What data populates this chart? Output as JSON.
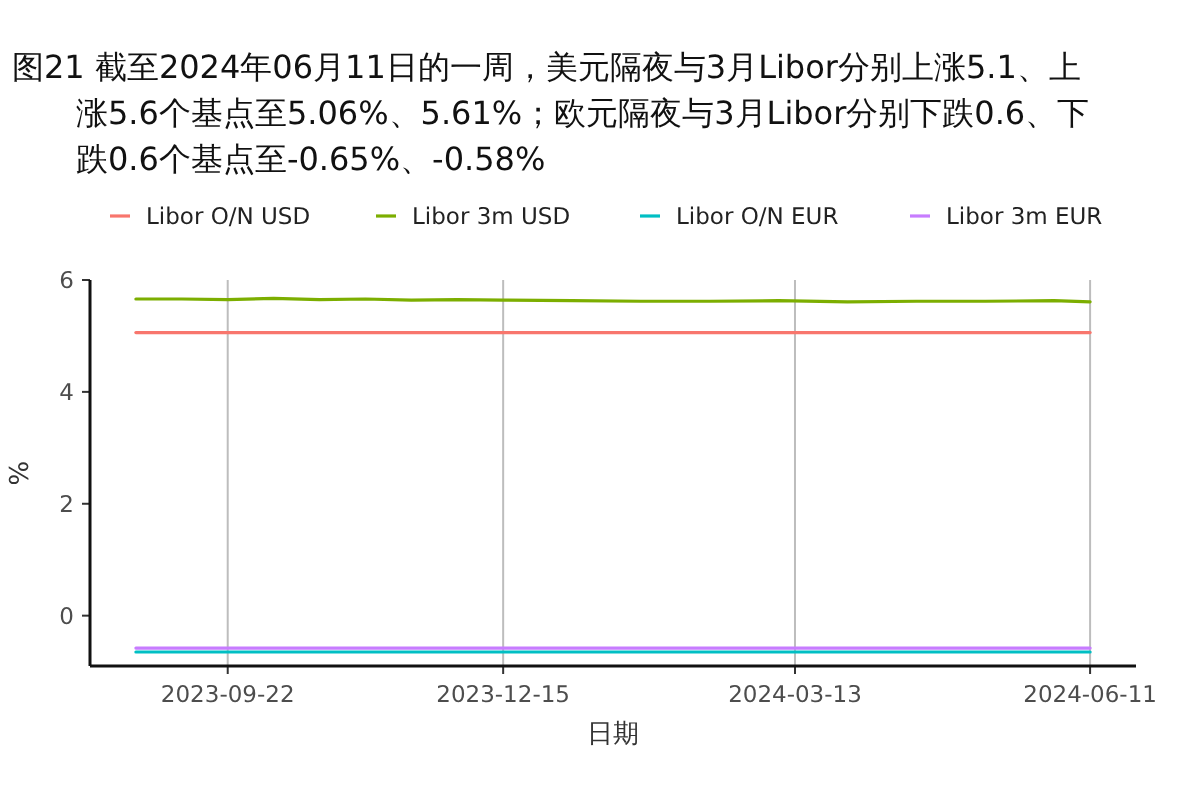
{
  "chart_data": {
    "type": "line",
    "title": "图21  截至2024年06月11日的一周，美元隔夜与3月Libor分别上涨5.1、上涨5.6个基点至5.06%、5.61%；欧元隔夜与3月Libor分别下跌0.6、下跌0.6个基点至-0.65%、-0.58%",
    "xlabel": "日期",
    "ylabel": "%",
    "x": [
      "2023-08-25",
      "2023-09-08",
      "2023-09-22",
      "2023-10-06",
      "2023-10-20",
      "2023-11-03",
      "2023-11-17",
      "2023-12-01",
      "2023-12-15",
      "2024-01-05",
      "2024-01-26",
      "2024-02-16",
      "2024-03-08",
      "2024-03-29",
      "2024-04-19",
      "2024-05-10",
      "2024-05-31",
      "2024-06-11"
    ],
    "series": [
      {
        "name": "Libor O/N USD",
        "color": "#f8766d",
        "values": [
          5.06,
          5.06,
          5.06,
          5.06,
          5.06,
          5.06,
          5.06,
          5.06,
          5.06,
          5.06,
          5.06,
          5.06,
          5.06,
          5.06,
          5.06,
          5.06,
          5.06,
          5.06
        ]
      },
      {
        "name": "Libor 3m USD",
        "color": "#7cae00",
        "values": [
          5.66,
          5.66,
          5.65,
          5.67,
          5.65,
          5.66,
          5.64,
          5.65,
          5.64,
          5.63,
          5.62,
          5.62,
          5.63,
          5.61,
          5.62,
          5.62,
          5.63,
          5.61
        ]
      },
      {
        "name": "Libor O/N EUR",
        "color": "#00bfc4",
        "values": [
          -0.65,
          -0.65,
          -0.65,
          -0.65,
          -0.65,
          -0.65,
          -0.65,
          -0.65,
          -0.65,
          -0.65,
          -0.65,
          -0.65,
          -0.65,
          -0.65,
          -0.65,
          -0.65,
          -0.65,
          -0.65
        ]
      },
      {
        "name": "Libor 3m EUR",
        "color": "#c77cff",
        "values": [
          -0.58,
          -0.58,
          -0.58,
          -0.58,
          -0.58,
          -0.58,
          -0.58,
          -0.58,
          -0.58,
          -0.58,
          -0.58,
          -0.58,
          -0.58,
          -0.58,
          -0.58,
          -0.58,
          -0.58,
          -0.58
        ]
      }
    ],
    "xlim": [
      "2023-08-11",
      "2024-06-25"
    ],
    "xticks": [
      "2023-09-22",
      "2023-12-15",
      "2024-03-13",
      "2024-06-11"
    ],
    "ylim": [
      -0.9,
      6
    ],
    "yticks": [
      0,
      2,
      4,
      6
    ],
    "grid": "x",
    "legend": "top",
    "marker": "none",
    "line_style": "solid"
  }
}
